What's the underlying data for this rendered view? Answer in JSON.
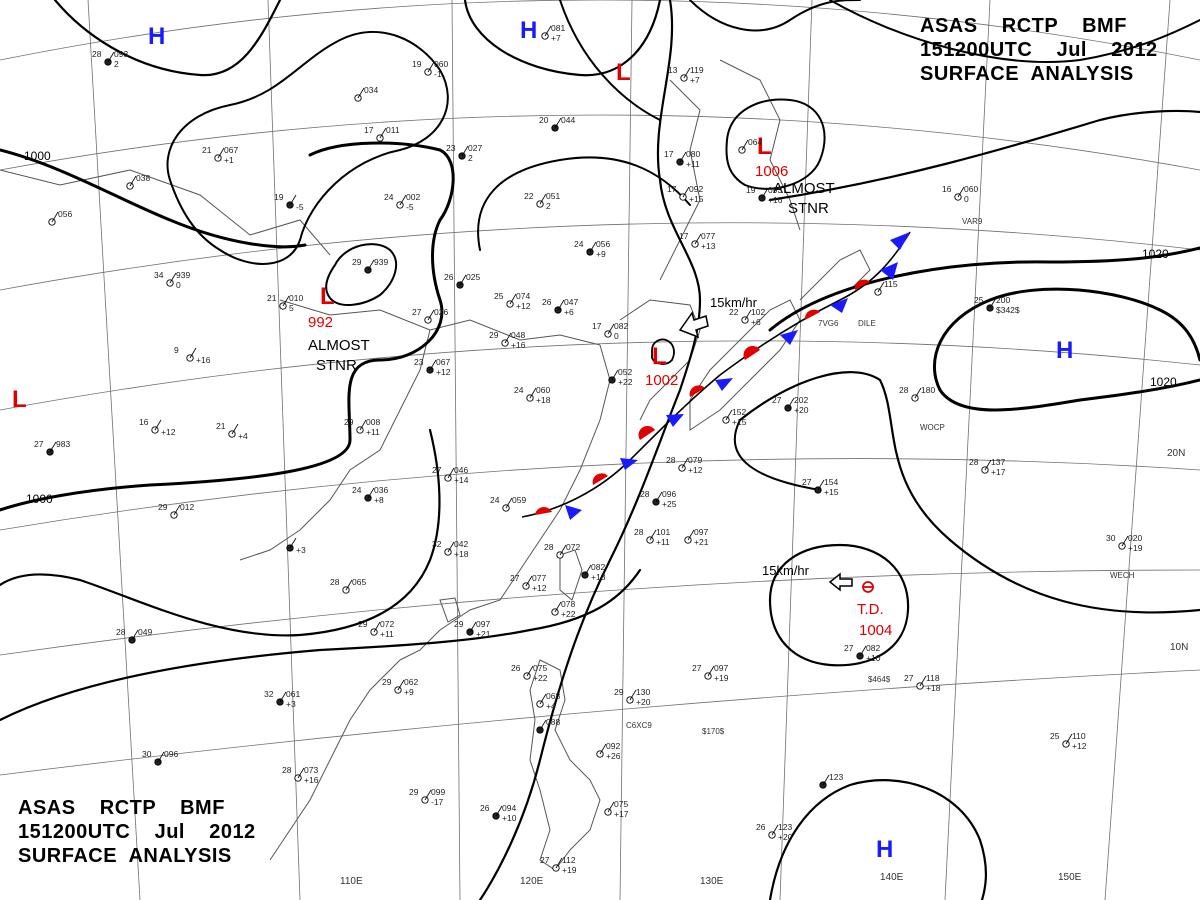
{
  "header": {
    "line1": "ASAS    RCTP    BMF",
    "line2": "151200UTC    Jul    2012",
    "line3": "SURFACE  ANALYSIS"
  },
  "lon_labels": [
    "110E",
    "120E",
    "130E",
    "140E",
    "150E"
  ],
  "lat_labels": [
    "20N",
    "10N"
  ],
  "isobar_labels": [
    "1000",
    "1000",
    "1020",
    "1020"
  ],
  "highs": [
    "H",
    "H",
    "H",
    "H"
  ],
  "lows": [
    "L",
    "L",
    "L",
    "L",
    "L"
  ],
  "low_pressures": [
    "992",
    "1002",
    "1006"
  ],
  "almost_stnr": [
    {
      "line1": "ALMOST",
      "line2": "STNR"
    },
    {
      "line1": "ALMOST",
      "line2": "STNR"
    }
  ],
  "motions": [
    "15km/hr",
    "15km/hr"
  ],
  "td": {
    "label": "T.D.",
    "pressure": "1004"
  },
  "colors": {
    "high": "#1a1aff",
    "low": "#e00000",
    "front_cold": "#1a1aff",
    "front_warm": "#e00000",
    "coast": "#555555",
    "grid": "#666666",
    "isobar": "#000000"
  },
  "stations": [
    {
      "t": "28",
      "p": "093",
      "x": "2"
    },
    {
      "t": "19",
      "p": "060",
      "x": "-1"
    },
    {
      "t": "",
      "p": "034",
      "x": ""
    },
    {
      "t": "20",
      "p": "044",
      "x": ""
    },
    {
      "t": "17",
      "p": "011",
      "x": ""
    },
    {
      "t": "21",
      "p": "067",
      "x": "+1"
    },
    {
      "t": "23",
      "p": "027",
      "x": "2"
    },
    {
      "t": "",
      "p": "081",
      "x": "+7"
    },
    {
      "t": "13",
      "p": "119",
      "x": "+7"
    },
    {
      "t": "17",
      "p": "080",
      "x": "+11"
    },
    {
      "t": "",
      "p": "064",
      "x": ""
    },
    {
      "t": "17",
      "p": "092",
      "x": "+15"
    },
    {
      "t": "19",
      "p": "093",
      "x": "+16"
    },
    {
      "t": "16",
      "p": "060",
      "x": "0"
    },
    {
      "t": "17",
      "p": "077",
      "x": "+13"
    },
    {
      "t": "24",
      "p": "056",
      "x": "+9"
    },
    {
      "t": "22",
      "p": "051",
      "x": "2"
    },
    {
      "t": "24",
      "p": "002",
      "x": "-5"
    },
    {
      "t": "19",
      "p": "",
      "x": "-5"
    },
    {
      "t": "",
      "p": "038",
      "x": ""
    },
    {
      "t": "",
      "p": "056",
      "x": ""
    },
    {
      "t": "29",
      "p": "939",
      "x": ""
    },
    {
      "t": "34",
      "p": "939",
      "x": "0"
    },
    {
      "t": "21",
      "p": "010",
      "x": "5"
    },
    {
      "t": "26",
      "p": "025",
      "x": ""
    },
    {
      "t": "27",
      "p": "026",
      "x": ""
    },
    {
      "t": "25",
      "p": "074",
      "x": "+12"
    },
    {
      "t": "26",
      "p": "047",
      "x": "+6"
    },
    {
      "t": "17",
      "p": "082",
      "x": "0"
    },
    {
      "t": "29",
      "p": "048",
      "x": "+16"
    },
    {
      "t": "23",
      "p": "067",
      "x": "+12"
    },
    {
      "t": "9",
      "p": "",
      "x": "+16"
    },
    {
      "t": "24",
      "p": "060",
      "x": "+18"
    },
    {
      "t": "",
      "p": "052",
      "x": "+22"
    },
    {
      "t": "22",
      "p": "102",
      "x": "+6"
    },
    {
      "t": "",
      "p": "115",
      "x": ""
    },
    {
      "t": "25",
      "p": "200",
      "x": "$342$"
    },
    {
      "t": "16",
      "p": "",
      "x": "+12"
    },
    {
      "t": "21",
      "p": "",
      "x": "+4"
    },
    {
      "t": "27",
      "p": "983",
      "x": ""
    },
    {
      "t": "29",
      "p": "008",
      "x": "+11"
    },
    {
      "t": "27",
      "p": "046",
      "x": "+14"
    },
    {
      "t": "24",
      "p": "036",
      "x": "+8"
    },
    {
      "t": "24",
      "p": "059",
      "x": ""
    },
    {
      "t": "29",
      "p": "012",
      "x": ""
    },
    {
      "t": "",
      "p": "",
      "x": "+3"
    },
    {
      "t": "32",
      "p": "042",
      "x": "+18"
    },
    {
      "t": "28",
      "p": "072",
      "x": ""
    },
    {
      "t": "",
      "p": "082",
      "x": "+18"
    },
    {
      "t": "27",
      "p": "077",
      "x": "+12"
    },
    {
      "t": "",
      "p": "078",
      "x": "+22"
    },
    {
      "t": "29",
      "p": "097",
      "x": "+21"
    },
    {
      "t": "28",
      "p": "101",
      "x": "+11"
    },
    {
      "t": "",
      "p": "097",
      "x": "+21"
    },
    {
      "t": "28",
      "p": "096",
      "x": "+25"
    },
    {
      "t": "28",
      "p": "079",
      "x": "+12"
    },
    {
      "t": "",
      "p": "152",
      "x": "+15"
    },
    {
      "t": "27",
      "p": "202",
      "x": "+20"
    },
    {
      "t": "28",
      "p": "180",
      "x": ""
    },
    {
      "t": "28",
      "p": "137",
      "x": "+17"
    },
    {
      "t": "27",
      "p": "154",
      "x": "+15"
    },
    {
      "t": "30",
      "p": "020",
      "x": "+19"
    },
    {
      "t": "28",
      "p": "065",
      "x": ""
    },
    {
      "t": "28",
      "p": "049",
      "x": ""
    },
    {
      "t": "29",
      "p": "072",
      "x": "+11"
    },
    {
      "t": "29",
      "p": "062",
      "x": "+9"
    },
    {
      "t": "32",
      "p": "061",
      "x": "+3"
    },
    {
      "t": "26",
      "p": "075",
      "x": "+22"
    },
    {
      "t": "",
      "p": "068",
      "x": "+4"
    },
    {
      "t": "",
      "p": "088",
      "x": ""
    },
    {
      "t": "29",
      "p": "130",
      "x": "+20"
    },
    {
      "t": "27",
      "p": "097",
      "x": "+19"
    },
    {
      "t": "27",
      "p": "082",
      "x": "+10"
    },
    {
      "t": "27",
      "p": "118",
      "x": "+18"
    },
    {
      "t": "",
      "p": "092",
      "x": "+26"
    },
    {
      "t": "30",
      "p": "096",
      "x": ""
    },
    {
      "t": "28",
      "p": "073",
      "x": "+16"
    },
    {
      "t": "29",
      "p": "099",
      "x": "-17"
    },
    {
      "t": "26",
      "p": "094",
      "x": "+10"
    },
    {
      "t": "",
      "p": "075",
      "x": "+17"
    },
    {
      "t": "27",
      "p": "112",
      "x": "+19"
    },
    {
      "t": "",
      "p": "123",
      "x": ""
    },
    {
      "t": "26",
      "p": "123",
      "x": "+20"
    },
    {
      "t": "25",
      "p": "110",
      "x": "+12"
    }
  ],
  "station_codes": [
    "VAR9",
    "7VG6",
    "DILE",
    "WOCP",
    "WECH",
    "C6XC9",
    "$170$",
    "$464$"
  ]
}
